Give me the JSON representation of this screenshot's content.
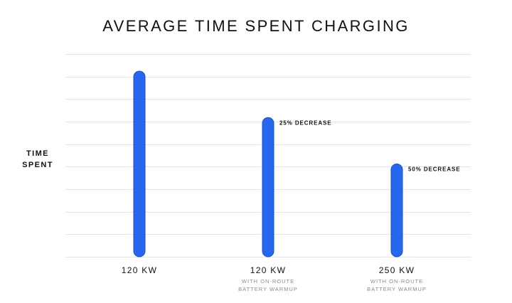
{
  "chart_data": {
    "type": "bar",
    "title": "AVERAGE TIME SPENT CHARGING",
    "ylabel": "TIME\nSPENT",
    "xlabel": "",
    "ylim": [
      0,
      100
    ],
    "grid": true,
    "categories": [
      "120 KW",
      "120 KW",
      "250 KW"
    ],
    "category_sublabels": [
      [],
      [
        "WITH ON-ROUTE",
        "BATTERY WARMUP"
      ],
      [
        "WITH ON-ROUTE",
        "BATTERY WARMUP"
      ]
    ],
    "values": [
      100,
      75,
      50
    ],
    "data_labels": [
      "",
      "25% DECREASE",
      "50% DECREASE"
    ],
    "bar_color": "#2767f0"
  }
}
